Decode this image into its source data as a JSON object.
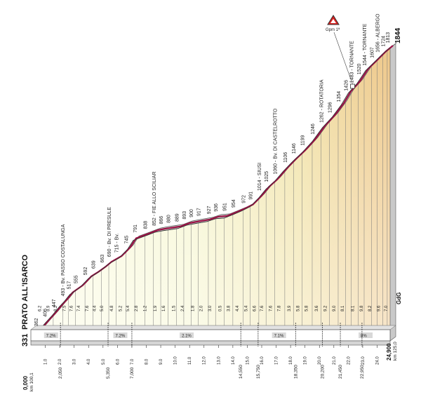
{
  "chart_data": {
    "type": "area",
    "start_name": "PRATO ALL'ISARCO",
    "start_altitude": "331",
    "finish_altitude": "1844",
    "finish_distance": "24,900",
    "start_distance": "0,000",
    "start_km_to_go": "km 100,1",
    "finish_km_to_go": "km 125,0",
    "gpm_label": "Gpm 1ª",
    "gpm_label_short": "Gpm 1ª",
    "logo_text": "GdG",
    "altitude_points": [
      {
        "km": 0.0,
        "alt": 331
      },
      {
        "km": 0.5,
        "alt": 362
      },
      {
        "km": 1.0,
        "alt": 406
      },
      {
        "km": 1.5,
        "alt": 447
      },
      {
        "km": 2.0,
        "alt": 493
      },
      {
        "km": 2.3,
        "alt": 517
      },
      {
        "km": 2.7,
        "alt": 555
      },
      {
        "km": 3.4,
        "alt": 592
      },
      {
        "km": 4.0,
        "alt": 639
      },
      {
        "km": 4.5,
        "alt": 663
      },
      {
        "km": 5.0,
        "alt": 690
      },
      {
        "km": 5.4,
        "alt": 715
      },
      {
        "km": 6.1,
        "alt": 745
      },
      {
        "km": 6.7,
        "alt": 791
      },
      {
        "km": 7.1,
        "alt": 838
      },
      {
        "km": 7.6,
        "alt": 852
      },
      {
        "km": 8.1,
        "alt": 866
      },
      {
        "km": 8.6,
        "alt": 880
      },
      {
        "km": 9.2,
        "alt": 889
      },
      {
        "km": 9.6,
        "alt": 893
      },
      {
        "km": 10.2,
        "alt": 900
      },
      {
        "km": 10.8,
        "alt": 917
      },
      {
        "km": 11.5,
        "alt": 927
      },
      {
        "km": 12.2,
        "alt": 936
      },
      {
        "km": 12.8,
        "alt": 951
      },
      {
        "km": 13.4,
        "alt": 954
      },
      {
        "km": 14.0,
        "alt": 972
      },
      {
        "km": 14.6,
        "alt": 991
      },
      {
        "km": 15.2,
        "alt": 1014
      },
      {
        "km": 15.8,
        "alt": 1060
      },
      {
        "km": 16.3,
        "alt": 1106
      },
      {
        "km": 16.9,
        "alt": 1146
      },
      {
        "km": 17.5,
        "alt": 1199
      },
      {
        "km": 18.1,
        "alt": 1246
      },
      {
        "km": 18.8,
        "alt": 1296
      },
      {
        "km": 19.5,
        "alt": 1354
      },
      {
        "km": 20.2,
        "alt": 1426
      },
      {
        "km": 20.9,
        "alt": 1483
      },
      {
        "km": 21.5,
        "alt": 1544
      },
      {
        "km": 22.0,
        "alt": 1607
      },
      {
        "km": 22.6,
        "alt": 1656
      },
      {
        "km": 23.2,
        "alt": 1724
      },
      {
        "km": 23.9,
        "alt": 1775
      },
      {
        "km": 24.4,
        "alt": 1813
      },
      {
        "km": 24.9,
        "alt": 1844
      }
    ],
    "altitude_labels": [
      {
        "km": 0.35,
        "text": "362"
      },
      {
        "km": 0.95,
        "text": "406"
      },
      {
        "km": 1.55,
        "text": "447"
      },
      {
        "km": 2.2,
        "text": "493 - Bv. PASSO COSTALUNGA"
      },
      {
        "km": 2.6,
        "text": "517"
      },
      {
        "km": 3.1,
        "text": "555"
      },
      {
        "km": 3.75,
        "text": "592"
      },
      {
        "km": 4.3,
        "text": "639"
      },
      {
        "km": 4.9,
        "text": "663"
      },
      {
        "km": 5.4,
        "text": "690 - Bv. DI PRESULE"
      },
      {
        "km": 5.9,
        "text": "715 - Bv."
      },
      {
        "km": 6.6,
        "text": "745"
      },
      {
        "km": 7.2,
        "text": "791"
      },
      {
        "km": 7.9,
        "text": "838"
      },
      {
        "km": 8.5,
        "text": "852 - FIE ALLO SCILIAR"
      },
      {
        "km": 9.0,
        "text": "866"
      },
      {
        "km": 9.5,
        "text": "880"
      },
      {
        "km": 10.1,
        "text": "889"
      },
      {
        "km": 10.6,
        "text": "893"
      },
      {
        "km": 11.1,
        "text": "900"
      },
      {
        "km": 11.6,
        "text": "917"
      },
      {
        "km": 12.3,
        "text": "927"
      },
      {
        "km": 12.8,
        "text": "936"
      },
      {
        "km": 13.4,
        "text": "951"
      },
      {
        "km": 14.0,
        "text": "954"
      },
      {
        "km": 14.7,
        "text": "972"
      },
      {
        "km": 15.2,
        "text": "991"
      },
      {
        "km": 15.8,
        "text": "1014 - SIUSI"
      },
      {
        "km": 16.3,
        "text": "1025"
      },
      {
        "km": 16.9,
        "text": "1060 - Bv. DI CASTELROTTO"
      },
      {
        "km": 17.6,
        "text": "1106"
      },
      {
        "km": 18.2,
        "text": "1146"
      },
      {
        "km": 18.8,
        "text": "1199"
      },
      {
        "km": 19.5,
        "text": "1246"
      },
      {
        "km": 20.1,
        "text": "1262 - ROTATORIA"
      },
      {
        "km": 20.7,
        "text": "1296"
      },
      {
        "km": 21.3,
        "text": "1354"
      },
      {
        "km": 21.8,
        "text": "1426"
      },
      {
        "km": 22.2,
        "text": "1483 - TORNANTE"
      },
      {
        "km": 22.7,
        "text": "1520"
      },
      {
        "km": 23.1,
        "text": "1544 - TORNANTE"
      },
      {
        "km": 23.6,
        "text": "1607"
      },
      {
        "km": 24.0,
        "text": "1656 - ALBERGO"
      },
      {
        "km": 24.4,
        "text": "1724"
      },
      {
        "km": 24.7,
        "text": "1813"
      }
    ],
    "km_axis_ticks": [
      "1.0",
      "2.0",
      "3.0",
      "4.0",
      "5.0",
      "6.0",
      "7.0",
      "8.0",
      "9.0",
      "10.0",
      "11.0",
      "12.0",
      "13.0",
      "14.0",
      "15.0",
      "16.0",
      "17.0",
      "18.0",
      "19.0",
      "20.0",
      "21.0",
      "22.0",
      "23.0",
      "24.0"
    ],
    "km_markers": [
      "2,050",
      "5,350",
      "7,000",
      "14,550",
      "15,750",
      "18,350",
      "20,200",
      "21,450",
      "22,950"
    ],
    "gradient_segments": [
      {
        "km": 0.6,
        "text": "6.2"
      },
      {
        "km": 1.2,
        "text": "8.9"
      },
      {
        "km": 1.7,
        "text": "8.2"
      },
      {
        "km": 2.3,
        "text": "7.5"
      },
      {
        "km": 2.8,
        "text": "7.6"
      },
      {
        "km": 3.3,
        "text": "7.4"
      },
      {
        "km": 3.9,
        "text": "7.6"
      },
      {
        "km": 4.4,
        "text": "4.4"
      },
      {
        "km": 4.9,
        "text": "5.0"
      },
      {
        "km": 5.6,
        "text": "4.8"
      },
      {
        "km": 6.2,
        "text": "5.2"
      },
      {
        "km": 6.7,
        "text": "5.4"
      },
      {
        "km": 7.3,
        "text": "2.8"
      },
      {
        "km": 7.9,
        "text": "1.2"
      },
      {
        "km": 8.6,
        "text": "1.9"
      },
      {
        "km": 9.2,
        "text": "1.6"
      },
      {
        "km": 9.9,
        "text": "1.5"
      },
      {
        "km": 10.5,
        "text": "2.4"
      },
      {
        "km": 11.2,
        "text": "1.8"
      },
      {
        "km": 11.8,
        "text": "2.0"
      },
      {
        "km": 12.4,
        "text": "3.0"
      },
      {
        "km": 13.1,
        "text": "0.5"
      },
      {
        "km": 13.7,
        "text": "3.8"
      },
      {
        "km": 14.3,
        "text": "4.4"
      },
      {
        "km": 14.9,
        "text": "5.4"
      },
      {
        "km": 15.5,
        "text": "6.6"
      },
      {
        "km": 16.0,
        "text": "7.6"
      },
      {
        "km": 16.6,
        "text": "7.6"
      },
      {
        "km": 17.2,
        "text": "7.8"
      },
      {
        "km": 17.9,
        "text": "3.9"
      },
      {
        "km": 18.5,
        "text": "5.8"
      },
      {
        "km": 19.1,
        "text": "5.8"
      },
      {
        "km": 19.8,
        "text": "3.6"
      },
      {
        "km": 20.4,
        "text": "9.2"
      },
      {
        "km": 21.0,
        "text": "9.0"
      },
      {
        "km": 21.6,
        "text": "8.1"
      },
      {
        "km": 22.3,
        "text": "8.1"
      },
      {
        "km": 22.9,
        "text": "9.8"
      },
      {
        "km": 23.5,
        "text": "8.2"
      },
      {
        "km": 24.1,
        "text": "9.6"
      },
      {
        "km": 24.6,
        "text": "7.0"
      }
    ],
    "section_gradients": [
      {
        "km": 1.4,
        "text": "7.2%"
      },
      {
        "km": 6.2,
        "text": "7.2%"
      },
      {
        "km": 10.8,
        "text": "2.1%"
      },
      {
        "km": 17.2,
        "text": "7.1%"
      },
      {
        "km": 23.2,
        "text": "8%"
      }
    ],
    "gpm_km": 22.3,
    "xlim": [
      0,
      24.9
    ],
    "ylim": [
      300,
      1900
    ]
  }
}
